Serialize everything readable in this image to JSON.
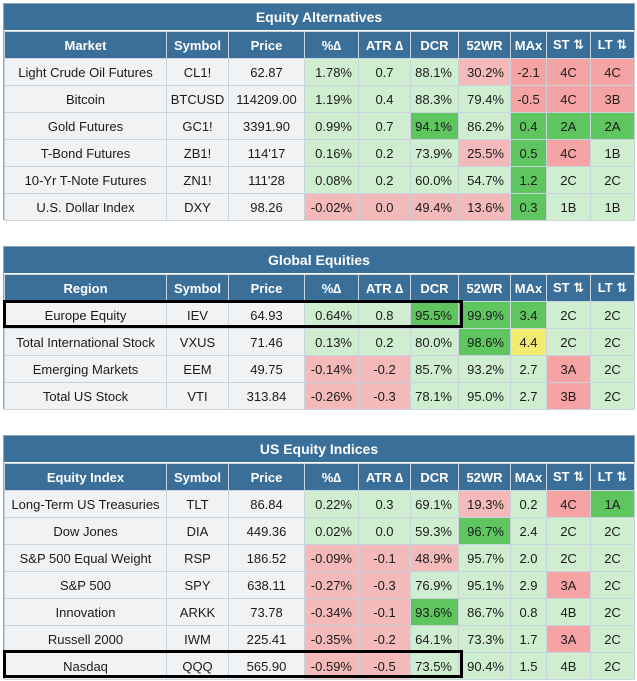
{
  "headers": {
    "market": "Market",
    "region": "Region",
    "equity_index": "Equity Index",
    "symbol": "Symbol",
    "price": "Price",
    "pct": "%∆",
    "atr": "ATR ∆",
    "dcr": "DCR",
    "wr52": "52WR",
    "max": "MAx",
    "st": "ST ⇅",
    "lt": "LT ⇅"
  },
  "colors": {
    "header_blue": "#3a6f9a",
    "red": "#f4b9b9",
    "light_green": "#cfeecf",
    "dark_green": "#5fc65f",
    "pink": "#f6a3a3",
    "yellow": "#f2ec70"
  },
  "chart_data": {
    "type": "table",
    "sections": [
      {
        "title": "Equity Alternatives",
        "first_col": "Market",
        "rows": [
          {
            "name": "Light Crude Oil Futures",
            "symbol": "CL1!",
            "price": "62.87",
            "pct": "1.78%",
            "atr": "0.7",
            "dcr": "88.1%",
            "wr52": "30.2%",
            "max": "-2.1",
            "st": "4C",
            "lt": "4C"
          },
          {
            "name": "Bitcoin",
            "symbol": "BTCUSD",
            "price": "114209.00",
            "pct": "1.19%",
            "atr": "0.4",
            "dcr": "88.3%",
            "wr52": "79.4%",
            "max": "-0.5",
            "st": "4C",
            "lt": "3B"
          },
          {
            "name": "Gold Futures",
            "symbol": "GC1!",
            "price": "3391.90",
            "pct": "0.99%",
            "atr": "0.7",
            "dcr": "94.1%",
            "wr52": "86.2%",
            "max": "0.4",
            "st": "2A",
            "lt": "2A"
          },
          {
            "name": "T-Bond Futures",
            "symbol": "ZB1!",
            "price": "114'17",
            "pct": "0.16%",
            "atr": "0.2",
            "dcr": "73.9%",
            "wr52": "25.5%",
            "max": "0.5",
            "st": "4C",
            "lt": "1B"
          },
          {
            "name": "10-Yr T-Note Futures",
            "symbol": "ZN1!",
            "price": "111'28",
            "pct": "0.08%",
            "atr": "0.2",
            "dcr": "60.0%",
            "wr52": "54.7%",
            "max": "1.2",
            "st": "2C",
            "lt": "2C"
          },
          {
            "name": "U.S. Dollar Index",
            "symbol": "DXY",
            "price": "98.26",
            "pct": "-0.02%",
            "atr": "0.0",
            "dcr": "49.4%",
            "wr52": "13.6%",
            "max": "0.3",
            "st": "1B",
            "lt": "1B"
          }
        ]
      },
      {
        "title": "Global Equities",
        "first_col": "Region",
        "rows": [
          {
            "name": "Europe Equity",
            "symbol": "IEV",
            "price": "64.93",
            "pct": "0.64%",
            "atr": "0.8",
            "dcr": "95.5%",
            "wr52": "99.9%",
            "max": "3.4",
            "st": "2C",
            "lt": "2C"
          },
          {
            "name": "Total International Stock",
            "symbol": "VXUS",
            "price": "71.46",
            "pct": "0.13%",
            "atr": "0.2",
            "dcr": "80.0%",
            "wr52": "98.6%",
            "max": "4.4",
            "st": "2C",
            "lt": "2C"
          },
          {
            "name": "Emerging Markets",
            "symbol": "EEM",
            "price": "49.75",
            "pct": "-0.14%",
            "atr": "-0.2",
            "dcr": "85.7%",
            "wr52": "93.2%",
            "max": "2.7",
            "st": "3A",
            "lt": "2C"
          },
          {
            "name": "Total US Stock",
            "symbol": "VTI",
            "price": "313.84",
            "pct": "-0.26%",
            "atr": "-0.3",
            "dcr": "78.1%",
            "wr52": "95.0%",
            "max": "2.7",
            "st": "3B",
            "lt": "2C"
          }
        ]
      },
      {
        "title": "US Equity Indices",
        "first_col": "Equity Index",
        "rows": [
          {
            "name": "Long-Term US Treasuries",
            "symbol": "TLT",
            "price": "86.84",
            "pct": "0.22%",
            "atr": "0.3",
            "dcr": "69.1%",
            "wr52": "19.3%",
            "max": "0.2",
            "st": "4C",
            "lt": "1A"
          },
          {
            "name": "Dow Jones",
            "symbol": "DIA",
            "price": "449.36",
            "pct": "0.02%",
            "atr": "0.0",
            "dcr": "59.3%",
            "wr52": "96.7%",
            "max": "2.4",
            "st": "2C",
            "lt": "2C"
          },
          {
            "name": "S&P 500 Equal Weight",
            "symbol": "RSP",
            "price": "186.52",
            "pct": "-0.09%",
            "atr": "-0.1",
            "dcr": "48.9%",
            "wr52": "95.7%",
            "max": "2.0",
            "st": "2C",
            "lt": "2C"
          },
          {
            "name": "S&P 500",
            "symbol": "SPY",
            "price": "638.11",
            "pct": "-0.27%",
            "atr": "-0.3",
            "dcr": "76.9%",
            "wr52": "95.1%",
            "max": "2.9",
            "st": "3A",
            "lt": "2C"
          },
          {
            "name": "Innovation",
            "symbol": "ARKK",
            "price": "73.78",
            "pct": "-0.34%",
            "atr": "-0.1",
            "dcr": "93.6%",
            "wr52": "86.7%",
            "max": "0.8",
            "st": "4B",
            "lt": "2C"
          },
          {
            "name": "Russell 2000",
            "symbol": "IWM",
            "price": "225.41",
            "pct": "-0.35%",
            "atr": "-0.2",
            "dcr": "64.1%",
            "wr52": "73.3%",
            "max": "1.7",
            "st": "3A",
            "lt": "2C"
          },
          {
            "name": "Nasdaq",
            "symbol": "QQQ",
            "price": "565.90",
            "pct": "-0.59%",
            "atr": "-0.5",
            "dcr": "73.5%",
            "wr52": "90.4%",
            "max": "1.5",
            "st": "4B",
            "lt": "2C"
          }
        ]
      }
    ]
  }
}
